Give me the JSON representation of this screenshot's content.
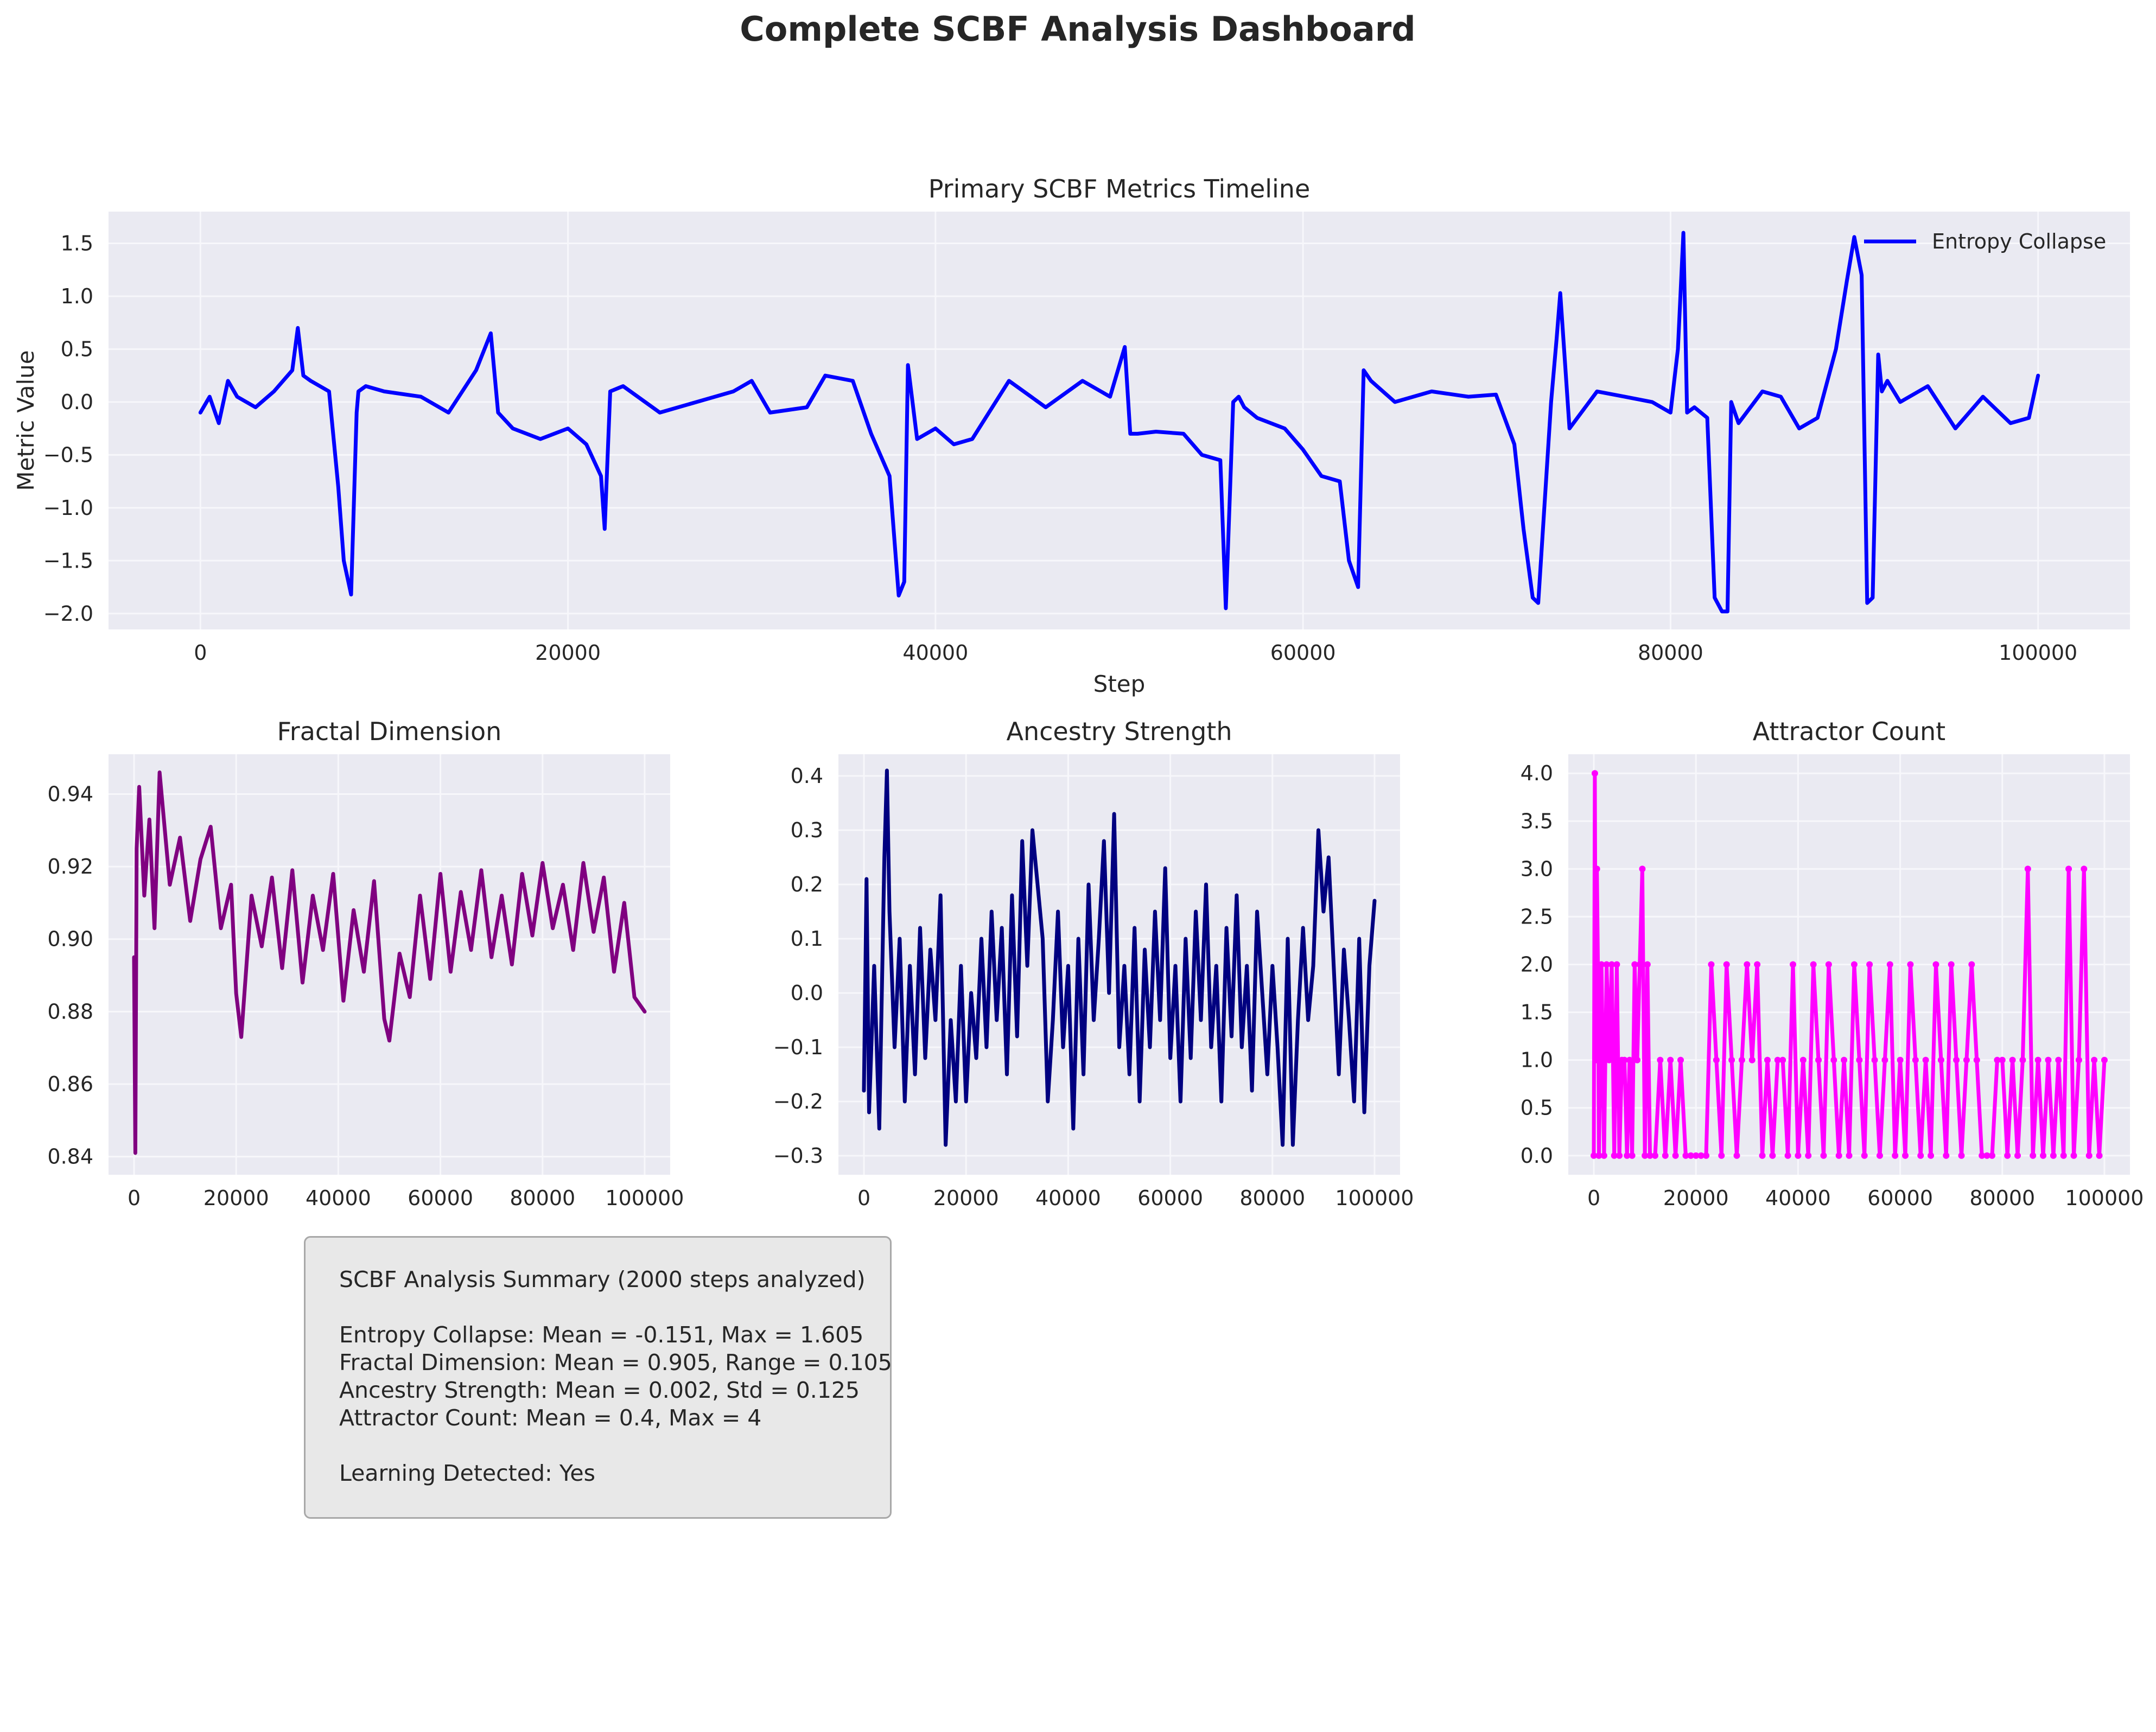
{
  "figure_title": "Complete SCBF Analysis Dashboard",
  "colors": {
    "background": "#ffffff",
    "axes_bg": "#eaeaf2",
    "grid": "#f7f7fb",
    "entropy": "#0000ff",
    "fractal": "#800080",
    "ancestry": "#000080",
    "attractor": "#ff00ff",
    "text": "#262626"
  },
  "chart_data": [
    {
      "type": "line",
      "title": "Primary SCBF Metrics Timeline",
      "xlabel": "Step",
      "ylabel": "Metric Value",
      "xlim": [
        -5000,
        105000
      ],
      "ylim": [
        -2.15,
        1.8
      ],
      "xticks": [
        0,
        20000,
        40000,
        60000,
        80000,
        100000
      ],
      "yticks": [
        -2.0,
        -1.5,
        -1.0,
        -0.5,
        0.0,
        0.5,
        1.0,
        1.5
      ],
      "ytick_labels": [
        "−2.0",
        "−1.5",
        "−1.0",
        "−0.5",
        "0.0",
        "0.5",
        "1.0",
        "1.5"
      ],
      "grid": true,
      "legend": "top-right",
      "series": [
        {
          "name": "Entropy Collapse",
          "color": "#0000ff",
          "x": [
            0,
            500,
            1000,
            1500,
            2000,
            3000,
            4000,
            5000,
            5300,
            5600,
            6000,
            7000,
            7500,
            7800,
            8200,
            8500,
            8600,
            9000,
            10000,
            12000,
            13500,
            15000,
            15800,
            16200,
            17000,
            18500,
            20000,
            21000,
            21800,
            22000,
            22300,
            23000,
            25000,
            27000,
            29000,
            30000,
            31000,
            33000,
            34000,
            35500,
            36500,
            37500,
            38000,
            38300,
            38500,
            39000,
            40000,
            41000,
            42000,
            44000,
            46000,
            48000,
            49500,
            50300,
            50600,
            51000,
            52000,
            53500,
            54500,
            55500,
            55800,
            56200,
            56500,
            56800,
            57500,
            59000,
            60000,
            61000,
            62000,
            62500,
            63000,
            63300,
            63700,
            65000,
            67000,
            69000,
            70500,
            71500,
            72000,
            72500,
            72800,
            73500,
            73800,
            74000,
            74500,
            76000,
            77500,
            79000,
            80000,
            80400,
            80700,
            80900,
            81300,
            82000,
            82400,
            82800,
            83100,
            83300,
            83700,
            85000,
            86000,
            87000,
            88000,
            89000,
            89600,
            90000,
            90400,
            90700,
            91000,
            91300,
            91500,
            91800,
            92500,
            94000,
            95500,
            97000,
            98500,
            99500,
            100000
          ],
          "y": [
            -0.1,
            0.05,
            -0.2,
            0.2,
            0.05,
            -0.05,
            0.1,
            0.3,
            0.7,
            0.25,
            0.2,
            0.1,
            -0.8,
            -1.5,
            -1.82,
            -0.1,
            0.1,
            0.15,
            0.1,
            0.05,
            -0.1,
            0.3,
            0.65,
            -0.1,
            -0.25,
            -0.35,
            -0.25,
            -0.4,
            -0.7,
            -1.2,
            0.1,
            0.15,
            -0.1,
            0.0,
            0.1,
            0.2,
            -0.1,
            -0.05,
            0.25,
            0.2,
            -0.3,
            -0.7,
            -1.83,
            -1.7,
            0.35,
            -0.35,
            -0.25,
            -0.4,
            -0.35,
            0.2,
            -0.05,
            0.2,
            0.05,
            0.52,
            -0.3,
            -0.3,
            -0.28,
            -0.3,
            -0.5,
            -0.55,
            -1.95,
            0.0,
            0.05,
            -0.05,
            -0.15,
            -0.25,
            -0.45,
            -0.7,
            -0.75,
            -1.5,
            -1.75,
            0.3,
            0.2,
            0.0,
            0.1,
            0.05,
            0.07,
            -0.4,
            -1.2,
            -1.85,
            -1.9,
            0.0,
            0.6,
            1.03,
            -0.25,
            0.1,
            0.05,
            0.0,
            -0.1,
            0.5,
            1.6,
            -0.1,
            -0.05,
            -0.15,
            -1.85,
            -1.98,
            -1.98,
            0.0,
            -0.2,
            0.1,
            0.05,
            -0.25,
            -0.15,
            0.5,
            1.15,
            1.56,
            1.2,
            -1.9,
            -1.85,
            0.45,
            0.1,
            0.2,
            0.0,
            0.15,
            -0.25,
            0.05,
            -0.2,
            -0.15,
            0.25
          ]
        }
      ]
    },
    {
      "type": "line",
      "title": "Fractal Dimension",
      "xlabel": "",
      "ylabel": "",
      "xlim": [
        -5000,
        105000
      ],
      "ylim": [
        0.835,
        0.951
      ],
      "xticks": [
        0,
        20000,
        40000,
        60000,
        80000,
        100000
      ],
      "yticks": [
        0.84,
        0.86,
        0.88,
        0.9,
        0.92,
        0.94
      ],
      "ytick_labels": [
        "0.84",
        "0.86",
        "0.88",
        "0.90",
        "0.92",
        "0.94"
      ],
      "grid": true,
      "series": [
        {
          "color": "#800080",
          "x": [
            0,
            250,
            500,
            1000,
            2000,
            3000,
            4000,
            5000,
            7000,
            9000,
            11000,
            13000,
            15000,
            17000,
            19000,
            20000,
            21000,
            23000,
            25000,
            27000,
            29000,
            31000,
            33000,
            35000,
            37000,
            39000,
            41000,
            43000,
            45000,
            47000,
            49000,
            50000,
            52000,
            54000,
            56000,
            58000,
            60000,
            62000,
            64000,
            66000,
            68000,
            70000,
            72000,
            74000,
            76000,
            78000,
            80000,
            82000,
            84000,
            86000,
            88000,
            90000,
            92000,
            94000,
            96000,
            98000,
            100000
          ],
          "y": [
            0.895,
            0.841,
            0.925,
            0.942,
            0.912,
            0.933,
            0.903,
            0.946,
            0.915,
            0.928,
            0.905,
            0.922,
            0.931,
            0.903,
            0.915,
            0.885,
            0.873,
            0.912,
            0.898,
            0.917,
            0.892,
            0.919,
            0.888,
            0.912,
            0.897,
            0.918,
            0.883,
            0.908,
            0.891,
            0.916,
            0.878,
            0.872,
            0.896,
            0.884,
            0.912,
            0.889,
            0.918,
            0.891,
            0.913,
            0.897,
            0.919,
            0.895,
            0.912,
            0.893,
            0.918,
            0.901,
            0.921,
            0.903,
            0.915,
            0.897,
            0.921,
            0.902,
            0.917,
            0.891,
            0.91,
            0.884,
            0.88
          ]
        }
      ]
    },
    {
      "type": "line",
      "title": "Ancestry Strength",
      "xlabel": "",
      "ylabel": "",
      "xlim": [
        -5000,
        105000
      ],
      "ylim": [
        -0.335,
        0.44
      ],
      "xticks": [
        0,
        20000,
        40000,
        60000,
        80000,
        100000
      ],
      "yticks": [
        -0.3,
        -0.2,
        -0.1,
        0.0,
        0.1,
        0.2,
        0.3,
        0.4
      ],
      "ytick_labels": [
        "−0.3",
        "−0.2",
        "−0.1",
        "0.0",
        "0.1",
        "0.2",
        "0.3",
        "0.4"
      ],
      "grid": true,
      "series": [
        {
          "color": "#000080",
          "x": [
            0,
            500,
            1000,
            2000,
            3000,
            4000,
            4500,
            5000,
            6000,
            7000,
            8000,
            9000,
            10000,
            11000,
            12000,
            13000,
            14000,
            15000,
            16000,
            17000,
            18000,
            19000,
            20000,
            21000,
            22000,
            23000,
            24000,
            25000,
            26000,
            27000,
            28000,
            29000,
            30000,
            31000,
            32000,
            33000,
            34000,
            35000,
            36000,
            37000,
            38000,
            39000,
            40000,
            41000,
            42000,
            43000,
            44000,
            45000,
            46000,
            47000,
            48000,
            49000,
            50000,
            51000,
            52000,
            53000,
            54000,
            55000,
            56000,
            57000,
            58000,
            59000,
            60000,
            61000,
            62000,
            63000,
            64000,
            65000,
            66000,
            67000,
            68000,
            69000,
            70000,
            71000,
            72000,
            73000,
            74000,
            75000,
            76000,
            77000,
            78000,
            79000,
            80000,
            81000,
            82000,
            83000,
            84000,
            85000,
            86000,
            87000,
            88000,
            89000,
            90000,
            91000,
            92000,
            93000,
            94000,
            95000,
            96000,
            97000,
            98000,
            99000,
            100000
          ],
          "y": [
            -0.18,
            0.21,
            -0.22,
            0.05,
            -0.25,
            0.25,
            0.41,
            0.15,
            -0.1,
            0.1,
            -0.2,
            0.05,
            -0.15,
            0.12,
            -0.12,
            0.08,
            -0.05,
            0.18,
            -0.28,
            -0.05,
            -0.2,
            0.05,
            -0.2,
            0.0,
            -0.12,
            0.1,
            -0.1,
            0.15,
            -0.05,
            0.12,
            -0.15,
            0.18,
            -0.08,
            0.28,
            0.05,
            0.3,
            0.2,
            0.1,
            -0.2,
            -0.05,
            0.15,
            -0.1,
            0.05,
            -0.25,
            0.1,
            -0.15,
            0.2,
            -0.05,
            0.1,
            0.28,
            0.0,
            0.33,
            -0.1,
            0.05,
            -0.15,
            0.12,
            -0.2,
            0.08,
            -0.1,
            0.15,
            -0.05,
            0.23,
            -0.12,
            0.05,
            -0.2,
            0.1,
            -0.12,
            0.15,
            -0.05,
            0.2,
            -0.1,
            0.05,
            -0.2,
            0.12,
            -0.08,
            0.18,
            -0.1,
            0.05,
            -0.18,
            0.15,
            0.0,
            -0.15,
            0.05,
            -0.1,
            -0.28,
            0.1,
            -0.28,
            -0.05,
            0.12,
            -0.05,
            0.05,
            0.3,
            0.15,
            0.25,
            0.05,
            -0.15,
            0.08,
            -0.05,
            -0.2,
            0.1,
            -0.22,
            0.05,
            0.17
          ]
        }
      ]
    },
    {
      "type": "line",
      "title": "Attractor Count",
      "xlabel": "",
      "ylabel": "",
      "xlim": [
        -5000,
        105000
      ],
      "ylim": [
        -0.2,
        4.2
      ],
      "xticks": [
        0,
        20000,
        40000,
        60000,
        80000,
        100000
      ],
      "yticks": [
        0.0,
        0.5,
        1.0,
        1.5,
        2.0,
        2.5,
        3.0,
        3.5,
        4.0
      ],
      "ytick_labels": [
        "0.0",
        "0.5",
        "1.0",
        "1.5",
        "2.0",
        "2.5",
        "3.0",
        "3.5",
        "4.0"
      ],
      "grid": true,
      "markers": true,
      "series": [
        {
          "color": "#ff00ff",
          "x": [
            0,
            200,
            400,
            600,
            800,
            1000,
            1500,
            2000,
            2500,
            3000,
            3500,
            4000,
            4500,
            5000,
            5500,
            6000,
            6500,
            7000,
            7500,
            8000,
            8500,
            9000,
            9500,
            10000,
            10500,
            11000,
            12000,
            13000,
            14000,
            15000,
            16000,
            17000,
            18000,
            19000,
            20000,
            21000,
            22000,
            23000,
            24000,
            25000,
            26000,
            27000,
            28000,
            29000,
            30000,
            31000,
            32000,
            33000,
            34000,
            35000,
            36000,
            37000,
            38000,
            39000,
            40000,
            41000,
            42000,
            43000,
            44000,
            45000,
            46000,
            47000,
            48000,
            49000,
            50000,
            51000,
            52000,
            53000,
            54000,
            55000,
            56000,
            57000,
            58000,
            59000,
            60000,
            61000,
            62000,
            63000,
            64000,
            65000,
            66000,
            67000,
            68000,
            69000,
            70000,
            71000,
            72000,
            73000,
            74000,
            75000,
            76000,
            77000,
            78000,
            79000,
            80000,
            81000,
            82000,
            83000,
            84000,
            85000,
            86000,
            87000,
            88000,
            89000,
            90000,
            91000,
            92000,
            93000,
            94000,
            95000,
            96000,
            97000,
            98000,
            99000,
            100000
          ],
          "y": [
            0,
            4,
            1,
            3,
            2,
            0,
            2,
            0,
            2,
            1,
            2,
            0,
            2,
            0,
            1,
            1,
            0,
            1,
            0,
            2,
            1,
            2,
            3,
            0,
            2,
            0,
            0,
            1,
            0,
            1,
            0,
            1,
            0,
            0,
            0,
            0,
            0,
            2,
            1,
            0,
            2,
            1,
            0,
            1,
            2,
            1,
            2,
            0,
            1,
            0,
            1,
            1,
            0,
            2,
            0,
            1,
            0,
            2,
            1,
            0,
            2,
            1,
            0,
            1,
            0,
            2,
            1,
            0,
            2,
            1,
            0,
            1,
            2,
            0,
            1,
            0,
            2,
            1,
            0,
            1,
            0,
            2,
            1,
            0,
            2,
            1,
            0,
            1,
            2,
            1,
            0,
            0,
            0,
            1,
            1,
            0,
            1,
            0,
            1,
            3,
            0,
            1,
            0,
            1,
            0,
            1,
            0,
            3,
            0,
            1,
            3,
            0,
            1,
            0,
            1
          ]
        }
      ]
    }
  ],
  "summary": {
    "title_line": "SCBF Analysis Summary (2000 steps analyzed)",
    "lines": [
      "Entropy Collapse: Mean = -0.151, Max = 1.605",
      "Fractal Dimension: Mean = 0.905, Range = 0.105",
      "Ancestry Strength: Mean = 0.002, Std = 0.125",
      "Attractor Count: Mean = 0.4, Max = 4"
    ],
    "learning_line": "Learning Detected: Yes"
  }
}
